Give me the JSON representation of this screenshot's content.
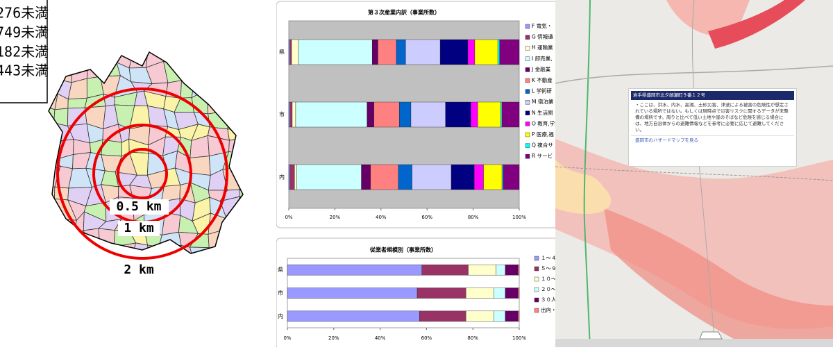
{
  "left_map": {
    "legend": [
      "276未満",
      "749未満",
      "182未満",
      "443未満"
    ],
    "rings": [
      "0.5 km",
      "1 km",
      "2 km"
    ]
  },
  "chart_data": [
    {
      "type": "bar",
      "orientation": "horizontal",
      "stacked": true,
      "title": "第３次産業内訳（事業所数）",
      "categories": [
        "県",
        "市",
        "内"
      ],
      "series": [
        {
          "name": "F 電気・",
          "color": "#9999ff",
          "values": [
            0.5,
            0.5,
            0.5
          ]
        },
        {
          "name": "G 情報通",
          "color": "#993366",
          "values": [
            0.7,
            1,
            2
          ]
        },
        {
          "name": "H 運輸業",
          "color": "#ffffcc",
          "values": [
            3,
            1.5,
            1
          ]
        },
        {
          "name": "I 卸売業,",
          "color": "#ccffff",
          "values": [
            32,
            31,
            28
          ]
        },
        {
          "name": "J 金融業",
          "color": "#660066",
          "values": [
            2.5,
            3,
            4
          ]
        },
        {
          "name": "K 不動産",
          "color": "#ff8080",
          "values": [
            8,
            11,
            12
          ]
        },
        {
          "name": "L 学術研",
          "color": "#0066cc",
          "values": [
            4,
            5,
            6
          ]
        },
        {
          "name": "M 宿泊業",
          "color": "#ccccff",
          "values": [
            15,
            15,
            17
          ]
        },
        {
          "name": "N 生活関",
          "color": "#000080",
          "values": [
            12,
            11,
            10
          ]
        },
        {
          "name": "O 教育,学",
          "color": "#ff00ff",
          "values": [
            3,
            3,
            4
          ]
        },
        {
          "name": "P 医療,福",
          "color": "#ffff00",
          "values": [
            10,
            10,
            8
          ]
        },
        {
          "name": "Q 複合サ",
          "color": "#00ffff",
          "values": [
            0.8,
            0.5,
            0.5
          ]
        },
        {
          "name": "R サービ",
          "color": "#800080",
          "values": [
            8.5,
            7.5,
            7
          ]
        }
      ],
      "xlim": [
        0,
        100
      ],
      "xticks": [
        {
          "value": 0,
          "label": "0%"
        },
        {
          "value": 20,
          "label": "20%"
        },
        {
          "value": 40,
          "label": "40%"
        },
        {
          "value": 60,
          "label": "60%"
        },
        {
          "value": 80,
          "label": "80%"
        },
        {
          "value": 100,
          "label": "100%"
        }
      ]
    },
    {
      "type": "bar",
      "orientation": "horizontal",
      "stacked": true,
      "title": "従業者規模別（事業所数）",
      "categories": [
        "県",
        "市",
        "内"
      ],
      "series": [
        {
          "name": "１～４",
          "color": "#9999ff",
          "values": [
            58,
            56,
            57
          ]
        },
        {
          "name": "５～９",
          "color": "#993366",
          "values": [
            20,
            21,
            20
          ]
        },
        {
          "name": "１０～",
          "color": "#ffffcc",
          "values": [
            12,
            12,
            12
          ]
        },
        {
          "name": "２０～",
          "color": "#ccffff",
          "values": [
            4,
            5,
            5
          ]
        },
        {
          "name": "３０人",
          "color": "#660066",
          "values": [
            5.5,
            5.5,
            5.5
          ]
        },
        {
          "name": "出向・",
          "color": "#ff8080",
          "values": [
            0.5,
            0.5,
            0.5
          ]
        }
      ],
      "xlim": [
        0,
        100
      ],
      "xticks": [
        {
          "value": 0,
          "label": "0%"
        },
        {
          "value": 20,
          "label": "20%"
        },
        {
          "value": 40,
          "label": "40%"
        },
        {
          "value": 60,
          "label": "60%"
        },
        {
          "value": 80,
          "label": "80%"
        },
        {
          "value": 100,
          "label": "100%"
        }
      ]
    }
  ],
  "right_map": {
    "popup": {
      "title": "岩手県盛岡市北夕顔瀬町９番１２号",
      "body": "・ここは、洪水、内水、高潮、土砂災害、津波による被害の危険性が想定されている場所ではない。もしくは現時点で災害リスクに関するデータが未整備の場所です。周りと比べて低い土地や崖のそばなど危険を感じる場合には、地方自治体からの避難情報などを参考に必要に応じて避難してください。",
      "link": "盛岡市のハザードマップを見る"
    }
  }
}
